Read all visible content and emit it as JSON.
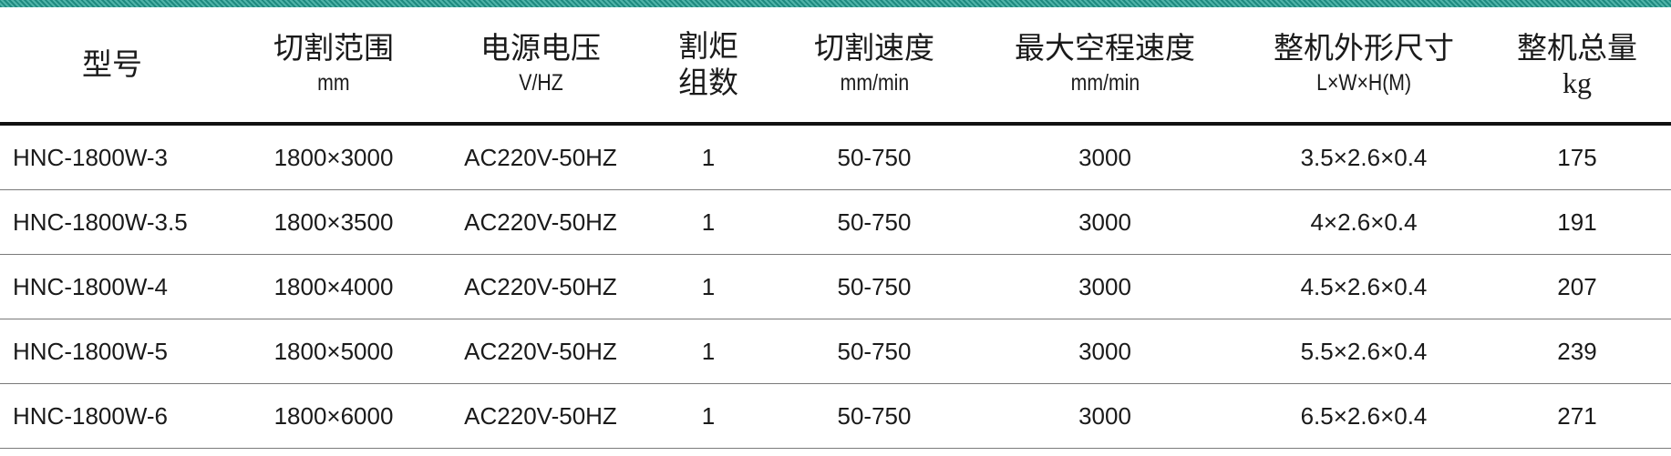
{
  "colors": {
    "top_bar": "#2a9a8f",
    "rule": "#111111"
  },
  "headers": [
    {
      "title": "型号",
      "unit": ""
    },
    {
      "title": "切割范围",
      "unit": "mm"
    },
    {
      "title": "电源电压",
      "unit": "V/HZ"
    },
    {
      "title": "割炬",
      "unit": "组数"
    },
    {
      "title": "切割速度",
      "unit": "mm/min"
    },
    {
      "title": "最大空程速度",
      "unit": "mm/min"
    },
    {
      "title": "整机外形尺寸",
      "unit": "L×W×H(M)"
    },
    {
      "title": "整机总量",
      "unit": "kg"
    }
  ],
  "rows": [
    [
      "HNC-1800W-3",
      "1800×3000",
      "AC220V-50HZ",
      "1",
      "50-750",
      "3000",
      "3.5×2.6×0.4",
      "175"
    ],
    [
      "HNC-1800W-3.5",
      "1800×3500",
      "AC220V-50HZ",
      "1",
      "50-750",
      "3000",
      "4×2.6×0.4",
      "191"
    ],
    [
      "HNC-1800W-4",
      "1800×4000",
      "AC220V-50HZ",
      "1",
      "50-750",
      "3000",
      "4.5×2.6×0.4",
      "207"
    ],
    [
      "HNC-1800W-5",
      "1800×5000",
      "AC220V-50HZ",
      "1",
      "50-750",
      "3000",
      "5.5×2.6×0.4",
      "239"
    ],
    [
      "HNC-1800W-6",
      "1800×6000",
      "AC220V-50HZ",
      "1",
      "50-750",
      "3000",
      "6.5×2.6×0.4",
      "271"
    ]
  ]
}
